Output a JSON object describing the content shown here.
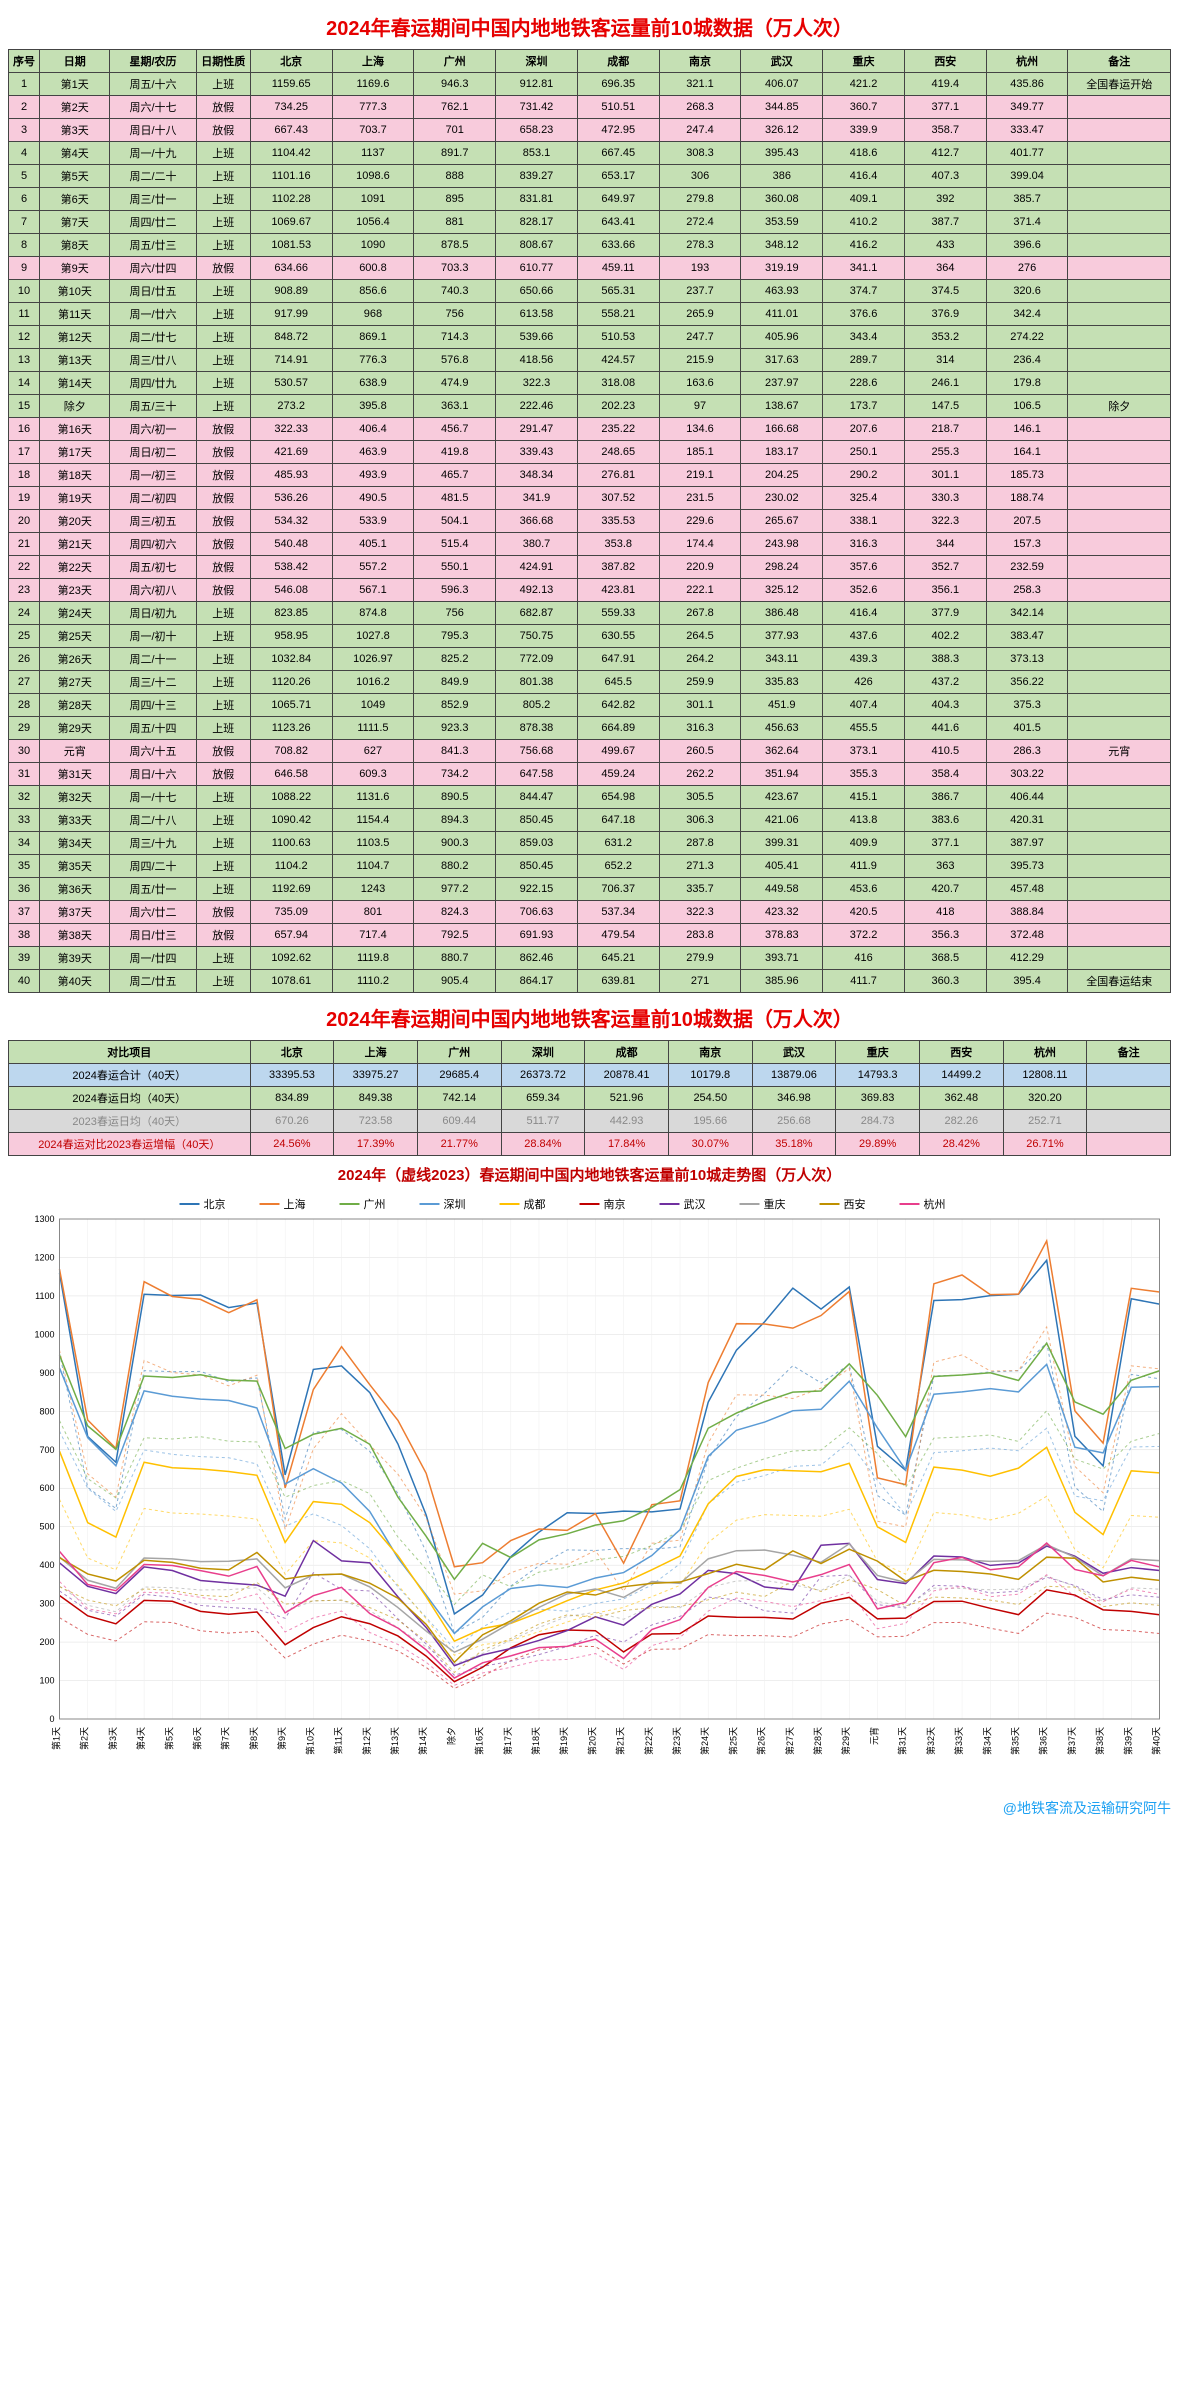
{
  "title": "2024年春运期间中国内地地铁客运量前10城数据（万人次）",
  "headers": [
    "序号",
    "日期",
    "星期/农历",
    "日期性质",
    "北京",
    "上海",
    "广州",
    "深圳",
    "成都",
    "南京",
    "武汉",
    "重庆",
    "西安",
    "杭州",
    "备注"
  ],
  "rows": [
    [
      1,
      "第1天",
      "周五/十六",
      "上班",
      1159.65,
      1169.6,
      946.3,
      912.81,
      696.35,
      321.1,
      406.07,
      421.2,
      419.4,
      435.86,
      "全国春运开始"
    ],
    [
      2,
      "第2天",
      "周六/十七",
      "放假",
      734.25,
      777.3,
      762.1,
      731.42,
      510.51,
      268.3,
      344.85,
      360.7,
      377.1,
      349.77,
      ""
    ],
    [
      3,
      "第3天",
      "周日/十八",
      "放假",
      667.43,
      703.7,
      701,
      658.23,
      472.95,
      247.4,
      326.12,
      339.9,
      358.7,
      333.47,
      ""
    ],
    [
      4,
      "第4天",
      "周一/十九",
      "上班",
      1104.42,
      1137,
      891.7,
      853.1,
      667.45,
      308.3,
      395.43,
      418.6,
      412.7,
      401.77,
      ""
    ],
    [
      5,
      "第5天",
      "周二/二十",
      "上班",
      1101.16,
      1098.6,
      888.0,
      839.27,
      653.17,
      306,
      386,
      416.4,
      407.3,
      399.04,
      ""
    ],
    [
      6,
      "第6天",
      "周三/廿一",
      "上班",
      1102.28,
      1091,
      895,
      831.81,
      649.97,
      279.8,
      360.08,
      409.1,
      392,
      385.7,
      ""
    ],
    [
      7,
      "第7天",
      "周四/廿二",
      "上班",
      1069.67,
      1056.4,
      881,
      828.17,
      643.41,
      272.4,
      353.59,
      410.2,
      387.7,
      371.4,
      ""
    ],
    [
      8,
      "第8天",
      "周五/廿三",
      "上班",
      1081.53,
      1090,
      878.5,
      808.67,
      633.66,
      278.3,
      348.12,
      416.2,
      433,
      396.6,
      ""
    ],
    [
      9,
      "第9天",
      "周六/廿四",
      "放假",
      634.66,
      600.8,
      703.3,
      610.77,
      459.11,
      193,
      319.19,
      341.1,
      364,
      276,
      ""
    ],
    [
      10,
      "第10天",
      "周日/廿五",
      "上班",
      908.89,
      856.6,
      740.3,
      650.66,
      565.31,
      237.7,
      463.93,
      374.7,
      374.5,
      320.6,
      ""
    ],
    [
      11,
      "第11天",
      "周一/廿六",
      "上班",
      917.99,
      968,
      756,
      613.58,
      558.21,
      265.9,
      411.01,
      376.6,
      376.9,
      342.4,
      ""
    ],
    [
      12,
      "第12天",
      "周二/廿七",
      "上班",
      848.72,
      869.1,
      714.3,
      539.66,
      510.53,
      247.7,
      405.96,
      343.4,
      353.2,
      274.22,
      ""
    ],
    [
      13,
      "第13天",
      "周三/廿八",
      "上班",
      714.91,
      776.3,
      576.8,
      418.56,
      424.57,
      215.9,
      317.63,
      289.7,
      314,
      236.4,
      ""
    ],
    [
      14,
      "第14天",
      "周四/廿九",
      "上班",
      530.57,
      638.9,
      474.9,
      322.3,
      318.08,
      163.6,
      237.97,
      228.6,
      246.1,
      179.8,
      ""
    ],
    [
      15,
      "除夕",
      "周五/三十",
      "上班",
      273.2,
      395.8,
      363.1,
      222.46,
      202.23,
      97,
      138.67,
      173.7,
      147.5,
      106.5,
      "除夕"
    ],
    [
      16,
      "第16天",
      "周六/初一",
      "放假",
      322.33,
      406.4,
      456.7,
      291.47,
      235.22,
      134.6,
      166.68,
      207.6,
      218.7,
      146.1,
      ""
    ],
    [
      17,
      "第17天",
      "周日/初二",
      "放假",
      421.69,
      463.9,
      419.8,
      339.43,
      248.65,
      185.1,
      183.17,
      250.1,
      255.3,
      164.1,
      ""
    ],
    [
      18,
      "第18天",
      "周一/初三",
      "放假",
      485.93,
      493.9,
      465.7,
      348.34,
      276.81,
      219.1,
      204.25,
      290.2,
      301.1,
      185.73,
      ""
    ],
    [
      19,
      "第19天",
      "周二/初四",
      "放假",
      536.26,
      490.5,
      481.5,
      341.9,
      307.52,
      231.5,
      230.02,
      325.4,
      330.3,
      188.74,
      ""
    ],
    [
      20,
      "第20天",
      "周三/初五",
      "放假",
      534.32,
      533.9,
      504.1,
      366.68,
      335.53,
      229.6,
      265.67,
      338.1,
      322.3,
      207.5,
      ""
    ],
    [
      21,
      "第21天",
      "周四/初六",
      "放假",
      540.48,
      405.1,
      515.4,
      380.7,
      353.8,
      174.4,
      243.98,
      316.3,
      344,
      157.3,
      ""
    ],
    [
      22,
      "第22天",
      "周五/初七",
      "放假",
      538.42,
      557.2,
      550.1,
      424.91,
      387.82,
      220.9,
      298.24,
      357.6,
      352.7,
      232.59,
      ""
    ],
    [
      23,
      "第23天",
      "周六/初八",
      "放假",
      546.08,
      567.1,
      596.3,
      492.13,
      423.81,
      222.1,
      325.12,
      352.6,
      356.1,
      258.3,
      ""
    ],
    [
      24,
      "第24天",
      "周日/初九",
      "上班",
      823.85,
      874.8,
      756,
      682.87,
      559.33,
      267.8,
      386.48,
      416.4,
      377.9,
      342.14,
      ""
    ],
    [
      25,
      "第25天",
      "周一/初十",
      "上班",
      958.95,
      1027.8,
      795.3,
      750.75,
      630.55,
      264.5,
      377.93,
      437.6,
      402.2,
      383.47,
      ""
    ],
    [
      26,
      "第26天",
      "周二/十一",
      "上班",
      1032.84,
      1026.97,
      825.2,
      772.09,
      647.91,
      264.2,
      343.11,
      439.3,
      388.3,
      373.13,
      ""
    ],
    [
      27,
      "第27天",
      "周三/十二",
      "上班",
      1120.26,
      1016.2,
      849.9,
      801.38,
      645.5,
      259.9,
      335.83,
      426,
      437.2,
      356.22,
      ""
    ],
    [
      28,
      "第28天",
      "周四/十三",
      "上班",
      1065.71,
      1049,
      852.9,
      805.2,
      642.82,
      301.1,
      451.9,
      407.4,
      404.3,
      375.3,
      ""
    ],
    [
      29,
      "第29天",
      "周五/十四",
      "上班",
      1123.26,
      1111.5,
      923.3,
      878.38,
      664.89,
      316.3,
      456.63,
      455.5,
      441.6,
      401.5,
      ""
    ],
    [
      30,
      "元宵",
      "周六/十五",
      "放假",
      708.82,
      627,
      841.3,
      756.68,
      499.67,
      260.5,
      362.64,
      373.1,
      410.5,
      286.3,
      "元宵"
    ],
    [
      31,
      "第31天",
      "周日/十六",
      "放假",
      646.58,
      609.3,
      734.2,
      647.58,
      459.24,
      262.2,
      351.94,
      355.3,
      358.4,
      303.22,
      ""
    ],
    [
      32,
      "第32天",
      "周一/十七",
      "上班",
      1088.22,
      1131.6,
      890.5,
      844.47,
      654.98,
      305.5,
      423.67,
      415.1,
      386.7,
      406.44,
      ""
    ],
    [
      33,
      "第33天",
      "周二/十八",
      "上班",
      1090.42,
      1154.4,
      894.3,
      850.45,
      647.18,
      306.3,
      421.06,
      413.8,
      383.6,
      420.31,
      ""
    ],
    [
      34,
      "第34天",
      "周三/十九",
      "上班",
      1100.63,
      1103.5,
      900.3,
      859.03,
      631.2,
      287.8,
      399.31,
      409.9,
      377.1,
      387.97,
      ""
    ],
    [
      35,
      "第35天",
      "周四/二十",
      "上班",
      1104.2,
      1104.7,
      880.2,
      850.45,
      652.2,
      271.3,
      405.41,
      411.9,
      363,
      395.73,
      ""
    ],
    [
      36,
      "第36天",
      "周五/廿一",
      "上班",
      1192.69,
      1243,
      977.2,
      922.15,
      706.37,
      335.7,
      449.58,
      453.6,
      420.7,
      457.48,
      ""
    ],
    [
      37,
      "第37天",
      "周六/廿二",
      "放假",
      735.09,
      801,
      824.3,
      706.63,
      537.34,
      322.3,
      423.32,
      420.5,
      418,
      388.84,
      ""
    ],
    [
      38,
      "第38天",
      "周日/廿三",
      "放假",
      657.94,
      717.4,
      792.5,
      691.93,
      479.54,
      283.8,
      378.83,
      372.2,
      356.3,
      372.48,
      ""
    ],
    [
      39,
      "第39天",
      "周一/廿四",
      "上班",
      1092.62,
      1119.8,
      880.7,
      862.46,
      645.21,
      279.9,
      393.71,
      416,
      368.5,
      412.29,
      ""
    ],
    [
      40,
      "第40天",
      "周二/廿五",
      "上班",
      1078.61,
      1110.2,
      905.4,
      864.17,
      639.81,
      271,
      385.96,
      411.7,
      360.3,
      395.4,
      "全国春运结束"
    ]
  ],
  "summary": {
    "label_col": "对比项目",
    "rows": [
      {
        "cls": "sum-blue",
        "label": "2024春运合计（40天）",
        "vals": [
          "33395.53",
          "33975.27",
          "29685.4",
          "26373.72",
          "20878.41",
          "10179.8",
          "13879.06",
          "14793.3",
          "14499.2",
          "12808.11",
          ""
        ]
      },
      {
        "cls": "sum-green",
        "label": "2024春运日均（40天）",
        "vals": [
          "834.89",
          "849.38",
          "742.14",
          "659.34",
          "521.96",
          "254.50",
          "346.98",
          "369.83",
          "362.48",
          "320.20",
          ""
        ]
      },
      {
        "cls": "sum-gray",
        "label": "2023春运日均（40天）",
        "vals": [
          "670.26",
          "723.58",
          "609.44",
          "511.77",
          "442.93",
          "195.66",
          "256.68",
          "284.73",
          "282.26",
          "252.71",
          ""
        ]
      },
      {
        "cls": "sum-pink",
        "label": "2024春运对比2023春运增幅（40天）",
        "vals": [
          "24.56%",
          "17.39%",
          "21.77%",
          "28.84%",
          "17.84%",
          "30.07%",
          "35.18%",
          "29.89%",
          "28.42%",
          "26.71%",
          ""
        ]
      }
    ]
  },
  "chart": {
    "title": "2024年（虚线2023）春运期间中国内地地铁客运量前10城走势图（万人次）",
    "cities": [
      "北京",
      "上海",
      "广州",
      "深圳",
      "成都",
      "南京",
      "武汉",
      "重庆",
      "西安",
      "杭州"
    ],
    "colors": [
      "#2e75b6",
      "#ed7d31",
      "#70ad47",
      "#5b9bd5",
      "#ffc000",
      "#c00000",
      "#7030a0",
      "#a5a5a5",
      "#bf9000",
      "#e83e8c"
    ],
    "ylim": [
      0,
      1300
    ],
    "ytick": 100,
    "xlabels": [
      "第1天",
      "第2天",
      "第3天",
      "第4天",
      "第5天",
      "第6天",
      "第7天",
      "第8天",
      "第9天",
      "第10天",
      "第11天",
      "第12天",
      "第13天",
      "第14天",
      "除夕",
      "第16天",
      "第17天",
      "第18天",
      "第19天",
      "第20天",
      "第21天",
      "第22天",
      "第23天",
      "第24天",
      "第25天",
      "第26天",
      "第27天",
      "第28天",
      "第29天",
      "元宵",
      "第31天",
      "第32天",
      "第33天",
      "第34天",
      "第35天",
      "第36天",
      "第37天",
      "第38天",
      "第39天",
      "第40天"
    ]
  },
  "footer": "@地铁客流及运输研究阿牛"
}
